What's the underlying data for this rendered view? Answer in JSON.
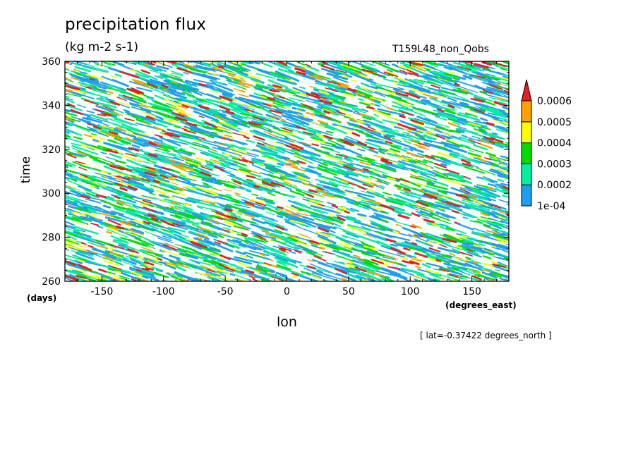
{
  "title": "precipitation flux",
  "units": "(kg m-2 s-1)",
  "run_label": "T159L48_non_Qobs",
  "note": "[ lat=-0.37422 degrees_north ]",
  "chart_data": {
    "type": "heatmap",
    "title": "precipitation flux",
    "subtitle": "(kg m-2 s-1)",
    "xlabel": "lon",
    "x_units": "(degrees_east)",
    "ylabel": "time",
    "y_units": "(days)",
    "xlim": [
      -180,
      180
    ],
    "ylim": [
      260,
      360
    ],
    "x_ticks": [
      -150,
      -100,
      -50,
      0,
      50,
      100,
      150
    ],
    "x_tick_labels": [
      "-150",
      "-100",
      "-50",
      "0",
      "50",
      "100",
      "150"
    ],
    "y_ticks": [
      260,
      280,
      300,
      320,
      340,
      360
    ],
    "y_tick_labels": [
      "260",
      "280",
      "300",
      "320",
      "340",
      "360"
    ],
    "colorbar": {
      "levels": [
        0.0001,
        0.0002,
        0.0003,
        0.0004,
        0.0005,
        0.0006
      ],
      "labels": [
        "1e-04",
        "0.0002",
        "0.0003",
        "0.0004",
        "0.0005",
        "0.0006"
      ],
      "colors": [
        "#ffffff",
        "#1ea0f0",
        "#00f0a0",
        "#00dc00",
        "#ffff00",
        "#ffa000",
        "#e61e1e"
      ]
    },
    "description": "Hovmoller diagram of precipitation flux at the equator; westward-tilted streaks of precipitation"
  }
}
